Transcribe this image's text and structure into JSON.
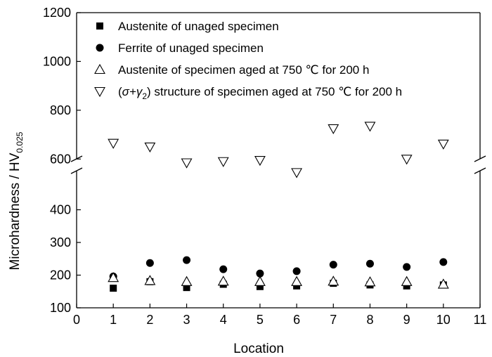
{
  "chart_data": {
    "type": "scatter",
    "xlabel": "Location",
    "ylabel_main": "Microhardness / HV",
    "ylabel_sub": "0.025",
    "xlim": [
      0,
      11
    ],
    "x_ticks": [
      0,
      1,
      2,
      3,
      4,
      5,
      6,
      7,
      8,
      9,
      10,
      11
    ],
    "ylim_lower": [
      100,
      500
    ],
    "ylim_upper": [
      500,
      1200
    ],
    "axis_break_between": [
      450,
      530
    ],
    "y_ticks_lower": [
      100,
      200,
      300,
      400
    ],
    "y_ticks_upper": [
      600,
      800,
      1000,
      1200
    ],
    "grid": false,
    "legend_position": "top-center",
    "series": [
      {
        "name": "Austenite of unaged specimen",
        "marker": "filled-square",
        "x": [
          1,
          2,
          3,
          4,
          5,
          6,
          7,
          8,
          9,
          10
        ],
        "values": [
          160,
          180,
          162,
          172,
          165,
          167,
          175,
          170,
          167,
          170
        ]
      },
      {
        "name": "Ferrite of unaged specimen",
        "marker": "filled-circle",
        "x": [
          1,
          2,
          3,
          4,
          5,
          6,
          7,
          8,
          9,
          10
        ],
        "values": [
          196,
          237,
          246,
          218,
          205,
          212,
          232,
          235,
          225,
          240
        ]
      },
      {
        "name": "Austenite of specimen aged at 750 ℃ for 200 h",
        "marker": "open-triangle-up",
        "x": [
          1,
          2,
          3,
          4,
          5,
          6,
          7,
          8,
          9,
          10
        ],
        "values": [
          192,
          183,
          180,
          181,
          180,
          180,
          181,
          179,
          180,
          172
        ]
      },
      {
        "name": "structure of specimen aged at 750 ℃ for 200 h",
        "name_prefix_symbol": "σ+γ",
        "name_prefix_sub": "2",
        "marker": "open-triangle-down",
        "x": [
          1,
          2,
          3,
          4,
          5,
          6,
          7,
          8,
          9,
          10
        ],
        "values": [
          665,
          650,
          585,
          590,
          595,
          545,
          725,
          735,
          600,
          662
        ]
      }
    ]
  }
}
